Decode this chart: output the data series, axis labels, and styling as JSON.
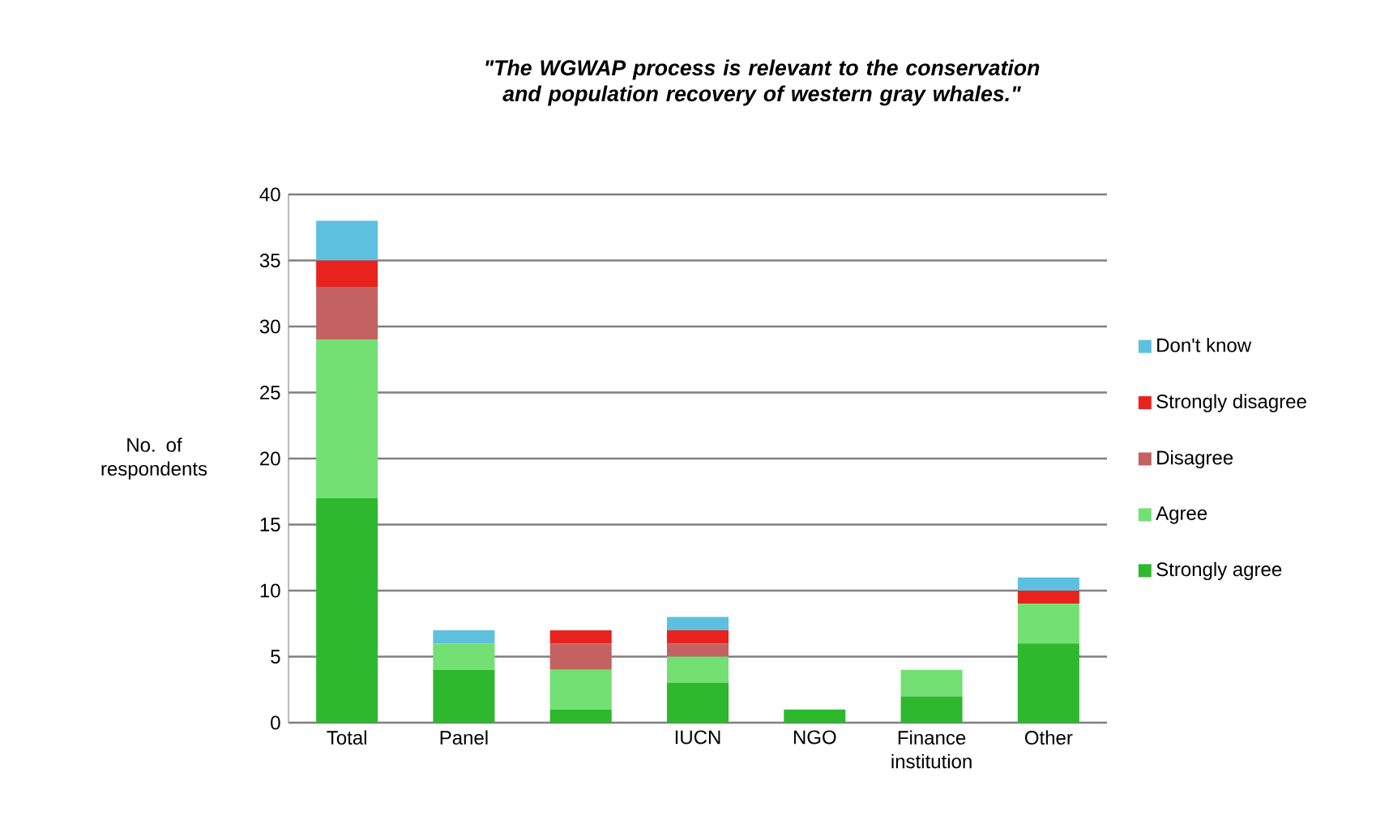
{
  "chart_data": {
    "type": "bar",
    "stacked": true,
    "title": "\"The WGWAP process is relevant to the conservation and population recovery of western gray whales.\"",
    "ylabel": "No. of respondents",
    "categories": [
      "Total",
      "Panel",
      null,
      "IUCN",
      "NGO",
      "Finance institution",
      "Other"
    ],
    "series": [
      {
        "name": "Strongly agree",
        "color": "#2db82d",
        "values": [
          17,
          4,
          1,
          3,
          1,
          2,
          6
        ]
      },
      {
        "name": "Agree",
        "color": "#72e072",
        "values": [
          12,
          2,
          3,
          2,
          0,
          2,
          3
        ]
      },
      {
        "name": "Disagree",
        "color": "#c46262",
        "values": [
          4,
          0,
          2,
          1,
          0,
          0,
          0
        ]
      },
      {
        "name": "Strongly disagree",
        "color": "#e8231e",
        "values": [
          2,
          0,
          1,
          1,
          0,
          0,
          1
        ]
      },
      {
        "name": "Don't know",
        "color": "#5cc0de",
        "values": [
          3,
          1,
          0,
          1,
          0,
          0,
          1
        ]
      }
    ],
    "ylim": [
      0,
      40
    ],
    "yticks": [
      0,
      5,
      10,
      15,
      20,
      25,
      30,
      35,
      40
    ],
    "grid": "y",
    "legend": "right"
  }
}
